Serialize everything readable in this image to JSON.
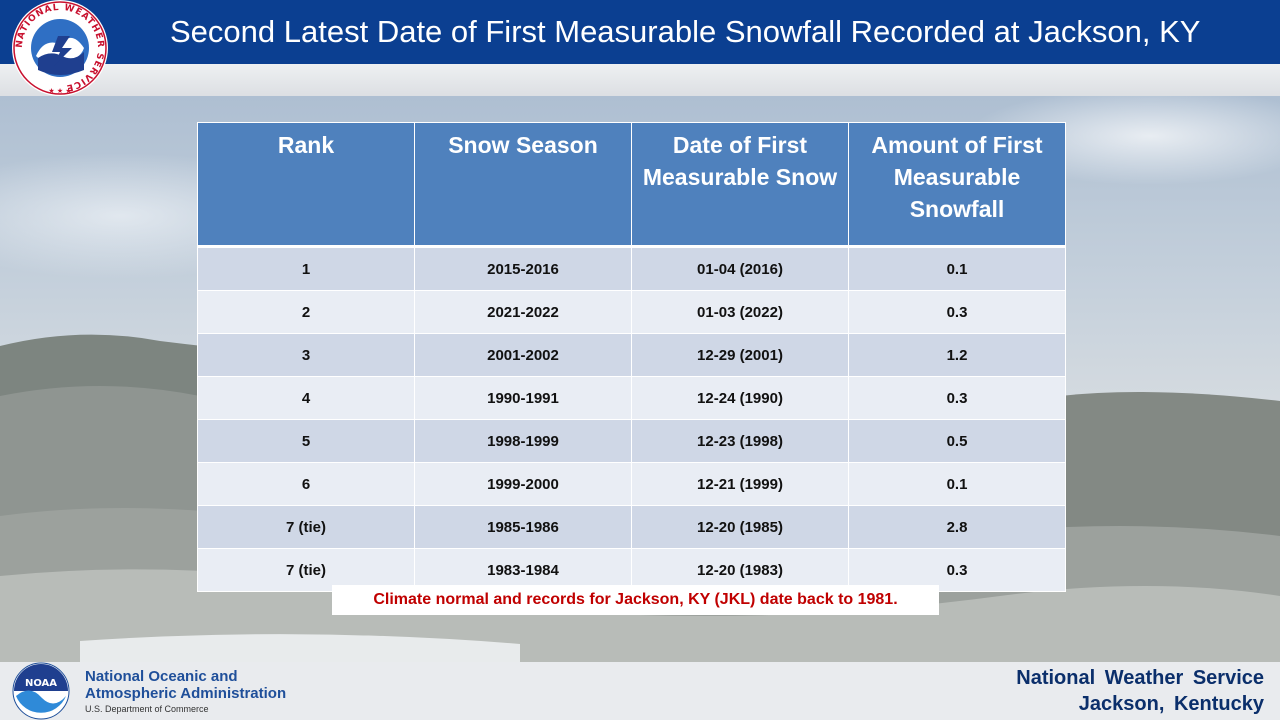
{
  "header": {
    "title": "Second Latest Date of First Measurable Snowfall Recorded at Jackson, KY",
    "logo_text": "NATIONAL WEATHER SERVICE"
  },
  "table": {
    "columns": [
      "Rank",
      "Snow Season",
      "Date of First Measurable Snow",
      "Amount of First Measurable Snowfall"
    ],
    "rows": [
      {
        "rank": "1",
        "season": "2015-2016",
        "date": "01-04 (2016)",
        "amount": "0.1"
      },
      {
        "rank": "2",
        "season": "2021-2022",
        "date": "01-03 (2022)",
        "amount": "0.3"
      },
      {
        "rank": "3",
        "season": "2001-2002",
        "date": "12-29 (2001)",
        "amount": "1.2"
      },
      {
        "rank": "4",
        "season": "1990-1991",
        "date": "12-24 (1990)",
        "amount": "0.3"
      },
      {
        "rank": "5",
        "season": "1998-1999",
        "date": "12-23 (1998)",
        "amount": "0.5"
      },
      {
        "rank": "6",
        "season": "1999-2000",
        "date": "12-21 (1999)",
        "amount": "0.1"
      },
      {
        "rank": "7 (tie)",
        "season": "1985-1986",
        "date": "12-20 (1985)",
        "amount": "2.8"
      },
      {
        "rank": "7 (tie)",
        "season": "1983-1984",
        "date": "12-20 (1983)",
        "amount": "0.3"
      }
    ]
  },
  "note": "Climate normal and records for Jackson, KY (JKL) date back to 1981.",
  "footer": {
    "noaa_line1": "National Oceanic and",
    "noaa_line2": "Atmospheric Administration",
    "noaa_dept": "U.S. Department of Commerce",
    "noaa_logo_text": "NOAA",
    "nws_name": "National Weather Service",
    "nws_office": "Jackson, Kentucky"
  },
  "colors": {
    "header_bg": "#0b3f91",
    "table_header_bg": "#4f81bd",
    "row_odd": "#cfd7e6",
    "row_even": "#e9edf4",
    "note_text": "#c00000",
    "footer_text": "#0b2f6b"
  }
}
